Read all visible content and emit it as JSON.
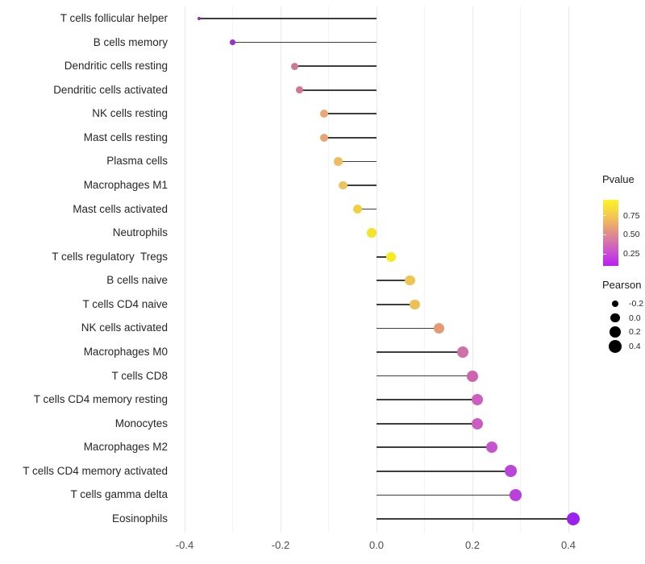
{
  "chart_data": {
    "type": "scatter",
    "style": "lollipop",
    "title": "",
    "xlabel": "",
    "ylabel": "",
    "orientation": "horizontal",
    "xlim": [
      -0.45,
      0.47
    ],
    "x_ticks": [
      {
        "value": -0.4,
        "label": "-0.4"
      },
      {
        "value": -0.2,
        "label": "-0.2"
      },
      {
        "value": 0.0,
        "label": "0.0"
      },
      {
        "value": 0.2,
        "label": "0.2"
      },
      {
        "value": 0.4,
        "label": "0.4"
      }
    ],
    "x_minor_ticks": [
      -0.3,
      -0.1,
      0.1,
      0.3
    ],
    "grid": true,
    "baseline": 0.0,
    "points": [
      {
        "label": "T cells follicular helper",
        "pearson": -0.37,
        "color": "#8a2bc9"
      },
      {
        "label": "B cells memory",
        "pearson": -0.3,
        "color": "#9c30c8"
      },
      {
        "label": "Dendritic cells resting",
        "pearson": -0.17,
        "color": "#d17697"
      },
      {
        "label": "Dendritic cells activated",
        "pearson": -0.16,
        "color": "#d3758e"
      },
      {
        "label": "NK cells resting",
        "pearson": -0.11,
        "color": "#e8a876"
      },
      {
        "label": "Mast cells resting",
        "pearson": -0.11,
        "color": "#e8a571"
      },
      {
        "label": "Plasma cells",
        "pearson": -0.08,
        "color": "#eebd60"
      },
      {
        "label": "Macrophages M1",
        "pearson": -0.07,
        "color": "#eec25c"
      },
      {
        "label": "Mast cells activated",
        "pearson": -0.04,
        "color": "#f0d13d"
      },
      {
        "label": "Neutrophils",
        "pearson": -0.01,
        "color": "#f3e32b"
      },
      {
        "label": "T cells regulatory  Tregs",
        "pearson": 0.03,
        "color": "#f6ea20"
      },
      {
        "label": "B cells naive",
        "pearson": 0.07,
        "color": "#eec453"
      },
      {
        "label": "T cells CD4 naive",
        "pearson": 0.08,
        "color": "#edc053"
      },
      {
        "label": "NK cells activated",
        "pearson": 0.13,
        "color": "#e59a72"
      },
      {
        "label": "Macrophages M0",
        "pearson": 0.18,
        "color": "#d06fa8"
      },
      {
        "label": "T cells CD8",
        "pearson": 0.2,
        "color": "#cf64ae"
      },
      {
        "label": "T cells CD4 memory resting",
        "pearson": 0.21,
        "color": "#cc5fc0"
      },
      {
        "label": "Monocytes",
        "pearson": 0.21,
        "color": "#cb5cc2"
      },
      {
        "label": "Macrophages M2",
        "pearson": 0.24,
        "color": "#c654cd"
      },
      {
        "label": "T cells CD4 memory activated",
        "pearson": 0.28,
        "color": "#bb45d8"
      },
      {
        "label": "T cells gamma delta",
        "pearson": 0.29,
        "color": "#b940da"
      },
      {
        "label": "Eosinophils",
        "pearson": 0.41,
        "color": "#9c20ee"
      }
    ],
    "legend_pvalue": {
      "title": "Pvalue",
      "position": "right",
      "gradient_top_color": "#fdf32a",
      "gradient_bottom_color": "#bb1ff0",
      "ticks": [
        {
          "label": "0.75",
          "frac_from_top": 0.24
        },
        {
          "label": "0.50",
          "frac_from_top": 0.53
        },
        {
          "label": "0.25",
          "frac_from_top": 0.82
        }
      ]
    },
    "legend_pearson": {
      "title": "Pearson",
      "position": "right",
      "dot_color": "#000000",
      "items": [
        {
          "label": "-0.2",
          "value": -0.2
        },
        {
          "label": "0.0",
          "value": 0.0
        },
        {
          "label": "0.2",
          "value": 0.2
        },
        {
          "label": "0.4",
          "value": 0.4
        }
      ]
    },
    "colors": {
      "stick": "#3d3d3d",
      "grid_major": "#e9e9e9",
      "grid_minor": "#f4f4f4",
      "axis_text": "#4d4d4d",
      "category_text": "#262626",
      "background": "#ffffff"
    }
  }
}
